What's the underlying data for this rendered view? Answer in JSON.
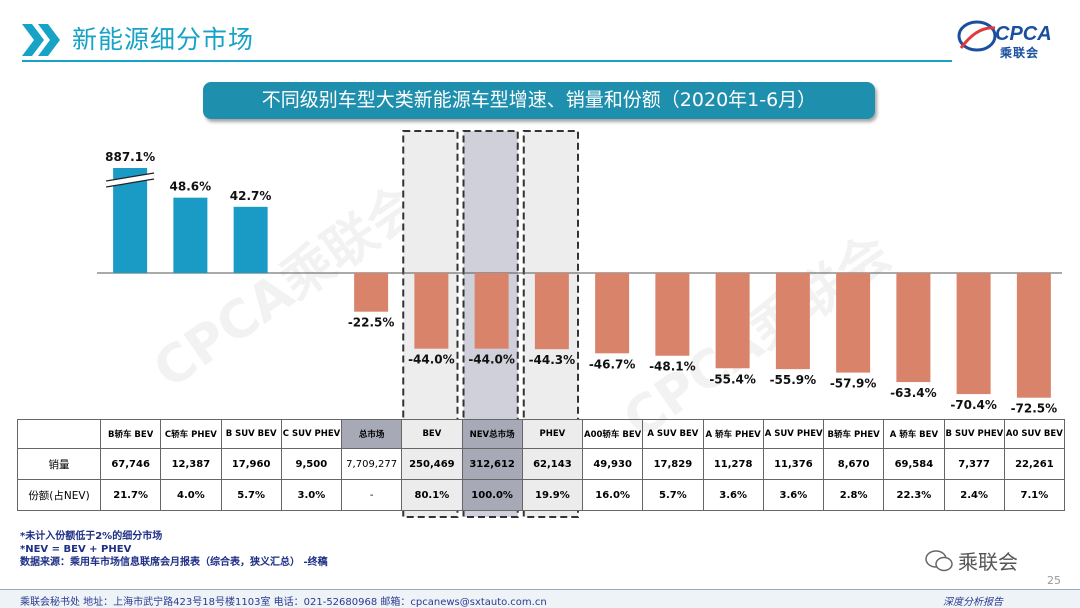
{
  "header": {
    "title": "新能源细分市场",
    "logo_text": "乘联会",
    "logo_mark": "CPCA"
  },
  "subtitle": "不同级别车型大类新能源车型增速、销量和份额（2020年1-6月）",
  "watermark": "CPCA乘联会",
  "chart_data": {
    "type": "bar",
    "categories": [
      "B轿车 BEV",
      "C轿车 PHEV",
      "B SUV BEV",
      "C SUV PHEV",
      "总市场",
      "BEV",
      "NEV总市场",
      "PHEV",
      "A00轿车 BEV",
      "A SUV BEV",
      "A 轿车 PHEV",
      "A SUV PHEV",
      "B轿车 PHEV",
      "A 轿车 BEV",
      "B SUV PHEV",
      "A0 SUV BEV"
    ],
    "series": [
      {
        "values": [
          887.1,
          48.6,
          42.7,
          null,
          -22.5,
          -44.0,
          -44.0,
          -44.3,
          -46.7,
          -48.1,
          -55.4,
          -55.9,
          -57.9,
          -63.4,
          -70.4,
          -72.5
        ],
        "labels": [
          "887.1%",
          "48.6%",
          "42.7%",
          "",
          "-22.5%",
          "-44.0%",
          "-44.0%",
          "-44.3%",
          "-46.7%",
          "-48.1%",
          "-55.4%",
          "-55.9%",
          "-57.9%",
          "-63.4%",
          "-70.4%",
          "-72.5%"
        ]
      }
    ],
    "colors": {
      "positive": "#1a9bc6",
      "negative": "#d9846a"
    },
    "axis_break_on": "B轿车 BEV",
    "highlighted": [
      "BEV",
      "NEV总市场",
      "PHEV"
    ]
  },
  "table": {
    "row_labels": {
      "sales": "销量",
      "share": "份额(占NEV)"
    },
    "sales": [
      "67,746",
      "12,387",
      "17,960",
      "9,500",
      "7,709,277",
      "250,469",
      "312,612",
      "62,143",
      "49,930",
      "17,829",
      "11,278",
      "11,376",
      "8,670",
      "69,584",
      "7,377",
      "22,261"
    ],
    "share": [
      "21.7%",
      "4.0%",
      "5.7%",
      "3.0%",
      "-",
      "80.1%",
      "100.0%",
      "19.9%",
      "16.0%",
      "5.7%",
      "3.6%",
      "3.6%",
      "2.8%",
      "22.3%",
      "2.4%",
      "7.1%"
    ]
  },
  "notes": [
    "*未计入份额低于2%的细分市场",
    "*NEV = BEV + PHEV",
    "数据来源：乘用车市场信息联席会月报表（综合表，狭义汇总）  -终稿"
  ],
  "footer": {
    "text": "乘联会秘书处    地址：上海市武宁路423号18号楼1103室    电话：021-52680968    邮箱：cpcanews@sxtauto.com.cn",
    "right": "深度分析报告",
    "page": "25",
    "wechat": "乘联会"
  }
}
